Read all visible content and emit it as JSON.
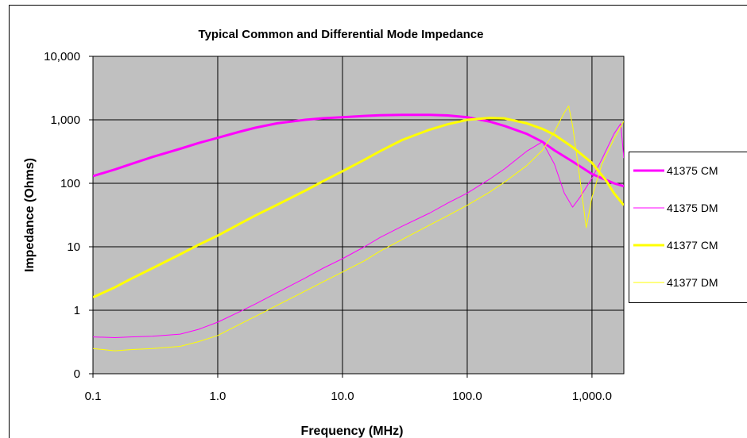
{
  "chart_data": {
    "type": "line",
    "title": "Typical Common and Differential Mode Impedance",
    "xlabel": "Frequency (MHz)",
    "ylabel": "Impedance (Ohms)",
    "x_scale": "log",
    "y_scale": "log",
    "xlim": [
      0.1,
      1800
    ],
    "ylim": [
      0.1,
      10000
    ],
    "x_ticks": [
      0.1,
      1,
      10,
      100,
      1000
    ],
    "x_tick_labels": [
      "0.1",
      "1.0",
      "10.0",
      "100.0",
      "1,000.0"
    ],
    "y_ticks": [
      0.1,
      1,
      10,
      100,
      1000,
      10000
    ],
    "y_tick_labels": [
      "0",
      "1",
      "10",
      "100",
      "1,000",
      "10,000"
    ],
    "grid": true,
    "plot_background": "#C0C0C0",
    "legend_position": "right",
    "series": [
      {
        "name": "41375 CM",
        "color": "#FF00FF",
        "line_width": 3,
        "x": [
          0.1,
          0.15,
          0.2,
          0.3,
          0.5,
          0.7,
          1.0,
          1.5,
          2,
          3,
          5,
          7,
          10,
          15,
          20,
          30,
          50,
          70,
          100,
          150,
          200,
          300,
          400,
          500,
          700,
          1000,
          1500,
          1800
        ],
        "y": [
          130,
          165,
          200,
          260,
          350,
          430,
          520,
          650,
          750,
          880,
          1000,
          1060,
          1100,
          1150,
          1180,
          1200,
          1200,
          1170,
          1100,
          940,
          800,
          600,
          450,
          330,
          220,
          140,
          100,
          90
        ]
      },
      {
        "name": "41375 DM",
        "color": "#FF00FF",
        "line_width": 1,
        "x": [
          0.1,
          0.15,
          0.2,
          0.3,
          0.5,
          0.7,
          1.0,
          1.5,
          2,
          3,
          5,
          7,
          10,
          15,
          20,
          30,
          50,
          70,
          100,
          150,
          200,
          300,
          400,
          500,
          600,
          700,
          800,
          1000,
          1200,
          1500,
          1700,
          1800
        ],
        "y": [
          0.38,
          0.37,
          0.38,
          0.39,
          0.42,
          0.5,
          0.65,
          0.95,
          1.25,
          1.9,
          3.2,
          4.6,
          6.5,
          10,
          14,
          21,
          34,
          49,
          70,
          115,
          170,
          320,
          450,
          200,
          70,
          42,
          60,
          120,
          240,
          600,
          870,
          250
        ]
      },
      {
        "name": "41377 CM",
        "color": "#FFFF00",
        "line_width": 3,
        "x": [
          0.1,
          0.15,
          0.2,
          0.3,
          0.5,
          0.7,
          1.0,
          1.5,
          2,
          3,
          5,
          7,
          10,
          15,
          20,
          30,
          50,
          70,
          100,
          150,
          200,
          300,
          400,
          500,
          700,
          1000,
          1300,
          1500,
          1800
        ],
        "y": [
          1.6,
          2.3,
          3.1,
          4.6,
          7.6,
          10.7,
          15,
          23,
          31,
          46,
          76,
          108,
          155,
          235,
          320,
          480,
          700,
          850,
          1000,
          1070,
          1050,
          880,
          720,
          580,
          370,
          210,
          110,
          70,
          45
        ]
      },
      {
        "name": "41377 DM",
        "color": "#FFFF00",
        "line_width": 1,
        "x": [
          0.1,
          0.15,
          0.2,
          0.3,
          0.5,
          0.7,
          1.0,
          1.5,
          2,
          3,
          5,
          7,
          10,
          15,
          20,
          30,
          50,
          70,
          100,
          150,
          200,
          300,
          400,
          500,
          600,
          650,
          700,
          800,
          900,
          1000,
          1200,
          1500,
          1800
        ],
        "y": [
          0.25,
          0.23,
          0.24,
          0.25,
          0.27,
          0.32,
          0.4,
          0.6,
          0.8,
          1.2,
          2.0,
          2.8,
          4.0,
          6.0,
          8.5,
          13,
          22,
          31,
          45,
          72,
          105,
          190,
          330,
          650,
          1300,
          1650,
          800,
          120,
          20,
          60,
          200,
          500,
          950
        ]
      }
    ]
  }
}
